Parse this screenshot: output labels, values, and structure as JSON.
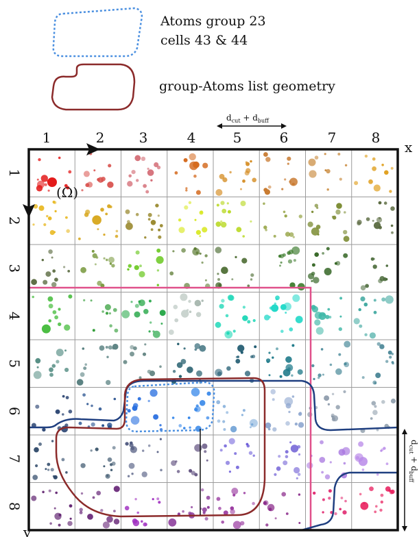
{
  "legend": {
    "group_label_line1": "Atoms group 23",
    "group_label_line2": "cells 43 & 44",
    "geometry_label": "group-Atoms list geometry"
  },
  "axes": {
    "x_symbol": "x",
    "y_symbol": "y",
    "columns": [
      "1",
      "2",
      "3",
      "4",
      "5",
      "6",
      "7",
      "8"
    ],
    "rows": [
      "1",
      "2",
      "3",
      "4",
      "5",
      "6",
      "7",
      "8"
    ]
  },
  "domain_symbol": "(Ω)",
  "dimension_label": "d",
  "dimension_sub1": "cut",
  "dimension_plus": " + d",
  "dimension_sub2": "buff",
  "colors": {
    "grid_border": "#111111",
    "group_dashed": "#4a8fe0",
    "geometry_outline": "#8b2a2a",
    "pink_box": "#e0508a",
    "navy_outline": "#1f3f80",
    "cell_colors": [
      [
        "#e31b1b",
        "#d9534f",
        "#d0606a",
        "#d46a1e",
        "#d48a1e",
        "#c87a30",
        "#c8883a",
        "#e0a020"
      ],
      [
        "#e8b820",
        "#d8a820",
        "#9a8a30",
        "#d8e820",
        "#b8d820",
        "#8a9a30",
        "#7a8a30",
        "#5a6a40"
      ],
      [
        "#5a6a40",
        "#7a9a40",
        "#6ac820",
        "#5a7a30",
        "#4a6a30",
        "#3a7a2a",
        "#3a6a2a",
        "#4a6a3a"
      ],
      [
        "#3ab830",
        "#2a9a30",
        "#2aa84a",
        "#a8b8b0",
        "#20d8b8",
        "#20d8c8",
        "#40b8a8",
        "#40a8a0"
      ],
      [
        "#508a80",
        "#507a7a",
        "#6a8a88",
        "#1f5a6a",
        "#1f5a70",
        "#1f7a8a",
        "#4a8a9a",
        "#508a9a"
      ],
      [
        "#1f3a6a",
        "#1f4a8a",
        "#2a70e0",
        "#2a80e8",
        "#7aa8d8",
        "#90a8d0",
        "#8a98a8",
        "#8a9aa8"
      ],
      [
        "#304a6a",
        "#405a70",
        "#505a80",
        "#5a4a7a",
        "#6a5ad8",
        "#7a6ad8",
        "#a878e0",
        "#b888e8"
      ],
      [
        "#5a1a6a",
        "#6a2a7a",
        "#a030c0",
        "#8a3a9a",
        "#9a3aa0",
        "#8a2a8a",
        "#e0206a",
        "#e81a5a"
      ]
    ]
  }
}
